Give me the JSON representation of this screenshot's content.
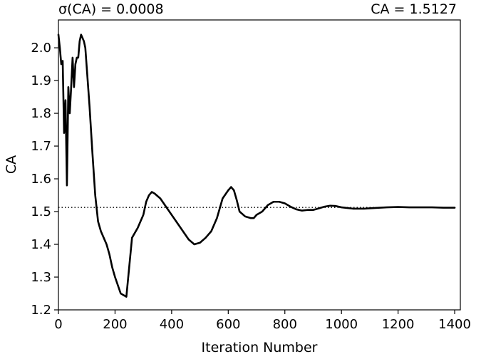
{
  "chart_data": {
    "type": "line",
    "title_left": "σ(CA) = 0.0008",
    "title_right": "CA = 1.5127",
    "xlabel": "Iteration Number",
    "ylabel": "CA",
    "xlim": [
      0,
      1420
    ],
    "ylim": [
      1.2,
      2.085
    ],
    "xticks": [
      0,
      200,
      400,
      600,
      800,
      1000,
      1200,
      1400
    ],
    "xtick_labels": [
      "0",
      "200",
      "400",
      "600",
      "800",
      "1000",
      "1200",
      "1400"
    ],
    "yticks": [
      1.2,
      1.3,
      1.4,
      1.5,
      1.6,
      1.7,
      1.8,
      1.9,
      2.0
    ],
    "ytick_labels": [
      "1.2",
      "1.3",
      "1.4",
      "1.5",
      "1.6",
      "1.7",
      "1.8",
      "1.9",
      "2.0"
    ],
    "grid": false,
    "reference_line": {
      "y": 1.5127,
      "style": "dotted"
    },
    "series": [
      {
        "color": "#000000",
        "x": [
          0,
          5,
          10,
          15,
          20,
          25,
          30,
          35,
          40,
          45,
          50,
          55,
          60,
          65,
          70,
          75,
          80,
          85,
          90,
          95,
          100,
          110,
          120,
          130,
          140,
          150,
          160,
          170,
          180,
          190,
          200,
          220,
          240,
          260,
          280,
          300,
          310,
          320,
          330,
          340,
          360,
          380,
          400,
          420,
          440,
          460,
          480,
          500,
          520,
          540,
          560,
          580,
          600,
          610,
          620,
          630,
          640,
          660,
          680,
          690,
          700,
          720,
          740,
          760,
          780,
          800,
          820,
          840,
          860,
          880,
          900,
          920,
          940,
          960,
          980,
          1000,
          1040,
          1080,
          1120,
          1160,
          1200,
          1240,
          1280,
          1320,
          1360,
          1400
        ],
        "y": [
          2.04,
          2.0,
          1.95,
          1.96,
          1.74,
          1.84,
          1.58,
          1.88,
          1.8,
          1.88,
          1.97,
          1.88,
          1.95,
          1.97,
          1.97,
          2.02,
          2.04,
          2.03,
          2.02,
          2.0,
          1.94,
          1.82,
          1.68,
          1.55,
          1.47,
          1.44,
          1.42,
          1.4,
          1.37,
          1.33,
          1.3,
          1.25,
          1.24,
          1.42,
          1.45,
          1.49,
          1.53,
          1.55,
          1.56,
          1.555,
          1.54,
          1.515,
          1.49,
          1.465,
          1.44,
          1.415,
          1.4,
          1.405,
          1.42,
          1.44,
          1.48,
          1.54,
          1.565,
          1.575,
          1.565,
          1.535,
          1.5,
          1.485,
          1.48,
          1.48,
          1.49,
          1.5,
          1.52,
          1.53,
          1.53,
          1.525,
          1.515,
          1.507,
          1.503,
          1.505,
          1.505,
          1.51,
          1.515,
          1.518,
          1.517,
          1.513,
          1.509,
          1.509,
          1.511,
          1.513,
          1.514,
          1.513,
          1.513,
          1.513,
          1.512,
          1.512
        ]
      }
    ]
  }
}
